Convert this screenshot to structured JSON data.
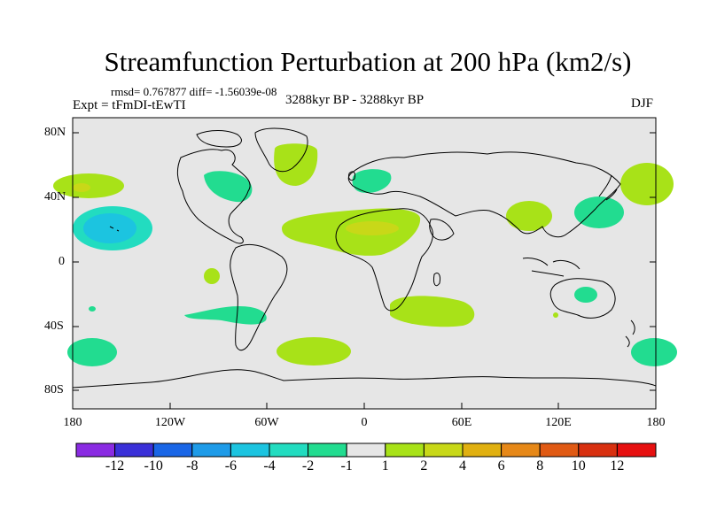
{
  "title": "Streamfunction Perturbation at 200 hPa (km2/s)",
  "stats_text": "rmsd= 0.767877 diff= -1.56039e-08",
  "experiment": "Expt = tFmDI-tEwTI",
  "period": "3288kyr BP - 3288kyr BP",
  "season": "DJF",
  "y_labels": [
    "80N",
    "40N",
    "0",
    "40S",
    "80S"
  ],
  "x_labels": [
    "180",
    "120W",
    "60W",
    "0",
    "60E",
    "120E",
    "180"
  ],
  "colorbar": {
    "labels": [
      "-12",
      "-10",
      "-8",
      "-6",
      "-4",
      "-2",
      "-1",
      "1",
      "2",
      "4",
      "6",
      "8",
      "10",
      "12"
    ],
    "colors": [
      "#8a2be2",
      "#3a30d8",
      "#1a66e6",
      "#1e9be8",
      "#1cc4e0",
      "#22dcc0",
      "#22dc90",
      "#e6e6e6",
      "#a8e218",
      "#c8d818",
      "#e0b010",
      "#e68818",
      "#e05a14",
      "#d83010",
      "#e61010"
    ]
  },
  "colors": {
    "background_field": "#e6e6e6",
    "coast": "#000000"
  }
}
